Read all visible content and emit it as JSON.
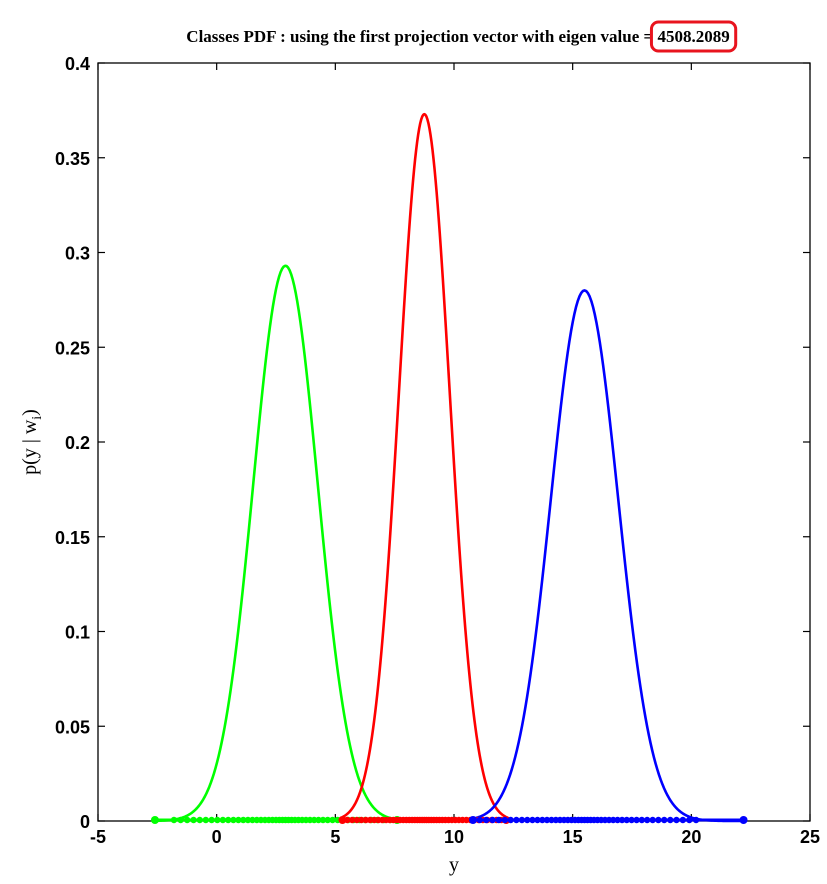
{
  "chart_data": {
    "type": "line",
    "title_prefix": "Classes PDF : using the first projection vector with eigen value",
    "title_sep": "=",
    "eigen_value": "4508.2089",
    "highlight_color": "#e8141e",
    "xlabel": "y",
    "ylabel_prefix": "p(y | w",
    "ylabel_sub": "i",
    "ylabel_suffix": ")",
    "xlim": [
      -5,
      25
    ],
    "ylim": [
      0,
      0.4
    ],
    "xticks": [
      "-5",
      "0",
      "5",
      "10",
      "15",
      "20",
      "25"
    ],
    "yticks": [
      "0",
      "0.05",
      "0.1",
      "0.15",
      "0.2",
      "0.25",
      "0.3",
      "0.35",
      "0.4"
    ],
    "grid": false,
    "series": [
      {
        "color": "#00ff00",
        "mean": 2.9,
        "sigma": 1.36,
        "peak": 0.293,
        "xmin": -2.6,
        "xmax": 7.6
      },
      {
        "color": "#ff0000",
        "mean": 8.75,
        "sigma": 1.07,
        "peak": 0.373,
        "xmin": 5.3,
        "xmax": 12.2
      },
      {
        "color": "#0000ff",
        "mean": 15.5,
        "sigma": 1.42,
        "peak": 0.28,
        "xmin": 10.8,
        "xmax": 22.2
      }
    ]
  }
}
